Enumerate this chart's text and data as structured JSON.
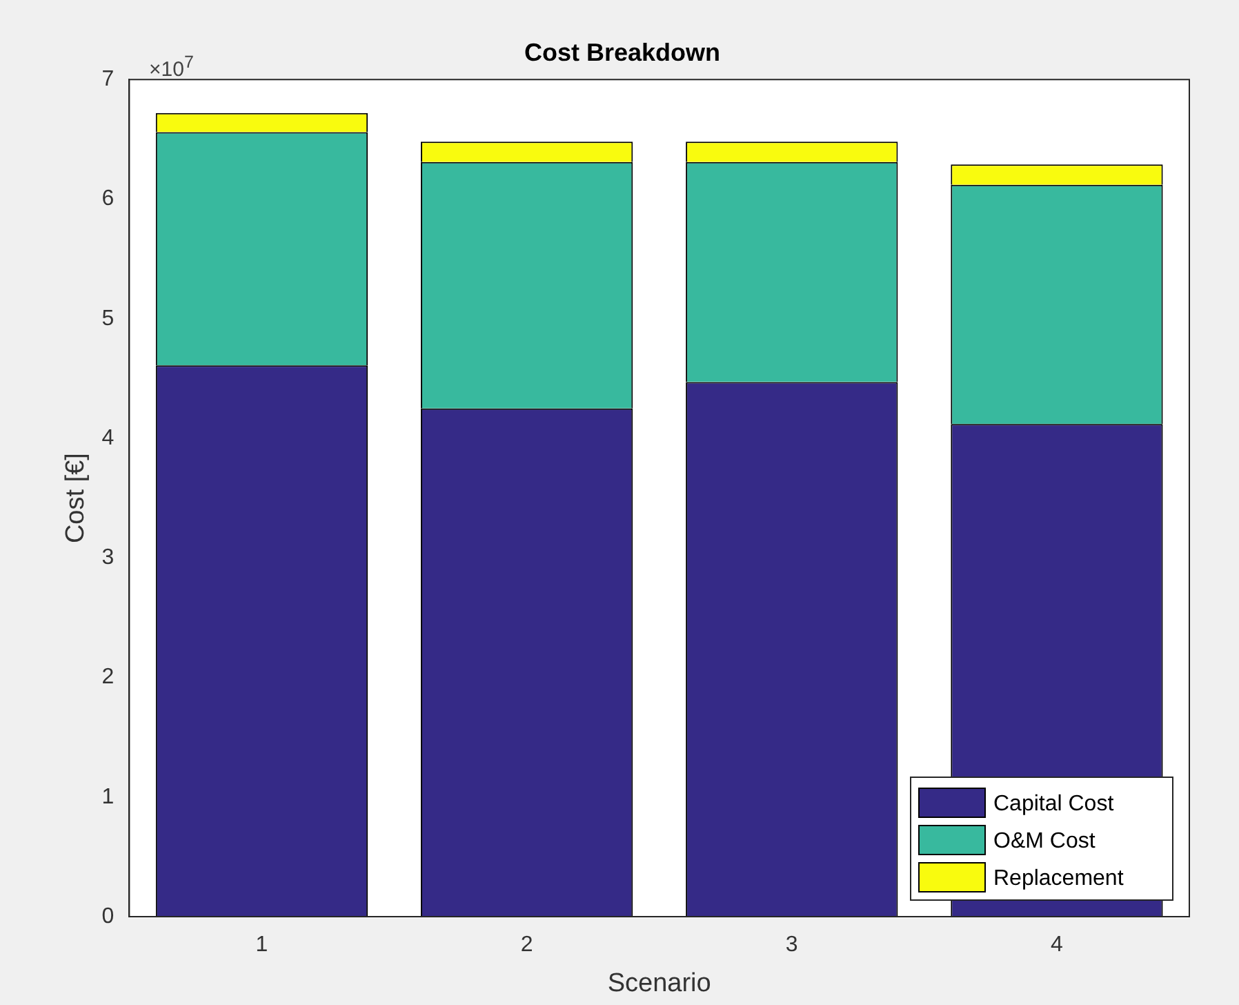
{
  "chart_data": {
    "type": "bar",
    "title": "Cost Breakdown",
    "xlabel": "Scenario",
    "ylabel": "Cost [€]",
    "categories": [
      "1",
      "2",
      "3",
      "4"
    ],
    "stacked": true,
    "series": [
      {
        "name": "Capital Cost",
        "color": "#352a87",
        "values": [
          4.61,
          4.25,
          4.47,
          4.12
        ]
      },
      {
        "name": "O&M Cost",
        "color": "#38b99e",
        "values": [
          1.95,
          2.06,
          1.84,
          2.0
        ]
      },
      {
        "name": "Replacement",
        "color": "#f9fb0e",
        "values": [
          0.16,
          0.17,
          0.17,
          0.17
        ]
      }
    ],
    "ylim": [
      0,
      7
    ],
    "yticks": [
      0,
      1,
      2,
      3,
      4,
      5,
      6,
      7
    ],
    "annotations": [
      "×10$^{7}$"
    ],
    "grid": false,
    "legend": "bottom right"
  }
}
